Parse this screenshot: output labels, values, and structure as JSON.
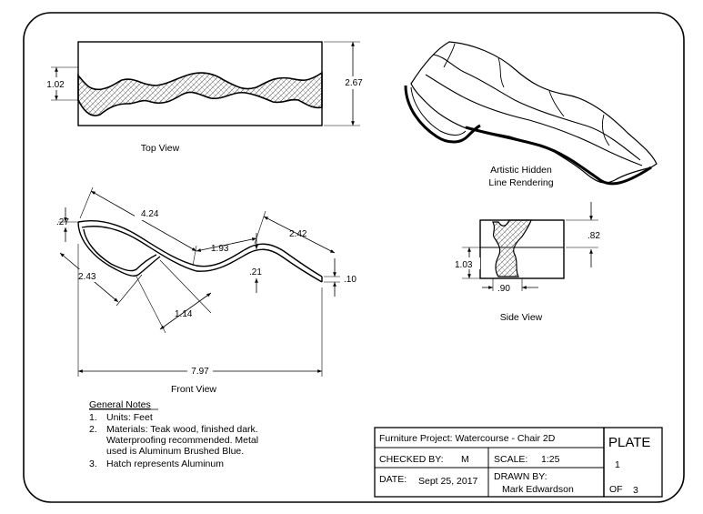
{
  "views": {
    "top": {
      "caption": "Top View",
      "dims": {
        "height_left": "1.02",
        "height_right": "2.67"
      }
    },
    "iso": {
      "caption_line1": "Artistic Hidden",
      "caption_line2": "Line Rendering"
    },
    "front": {
      "caption": "Front View",
      "dims": {
        "top_thickness": ".27",
        "top_length": "4.24",
        "mid_span": "1.93",
        "right_span": "2.42",
        "left_span": "2.43",
        "crest_height": ".21",
        "tail_thickness": ".10",
        "lower_span": "1.14",
        "overall_length": "7.97"
      }
    },
    "side": {
      "caption": "Side View",
      "dims": {
        "upper": ".82",
        "lower": "1.03",
        "width": ".90"
      }
    }
  },
  "notes": {
    "heading": "General Notes",
    "items": [
      {
        "num": "1.",
        "lines": [
          "Units: Feet"
        ]
      },
      {
        "num": "2.",
        "lines": [
          "Materials: Teak wood, finished dark.",
          "Waterproofing recommended. Metal",
          "used is Aluminum Brushed Blue."
        ]
      },
      {
        "num": "3.",
        "lines": [
          "Hatch represents Aluminum"
        ]
      }
    ]
  },
  "title_block": {
    "project": "Furniture Project: Watercourse - Chair 2D",
    "checked_by_label": "CHECKED BY:",
    "checked_by": "M",
    "scale_label": "SCALE:",
    "scale": "1:25",
    "date_label": "DATE:",
    "date": "Sept 25, 2017",
    "drawn_by_label": "DRAWN BY:",
    "drawn_by": "Mark Edwardson",
    "plate_label": "PLATE",
    "plate_number": "1",
    "of_label": "OF",
    "of_total": "3"
  }
}
